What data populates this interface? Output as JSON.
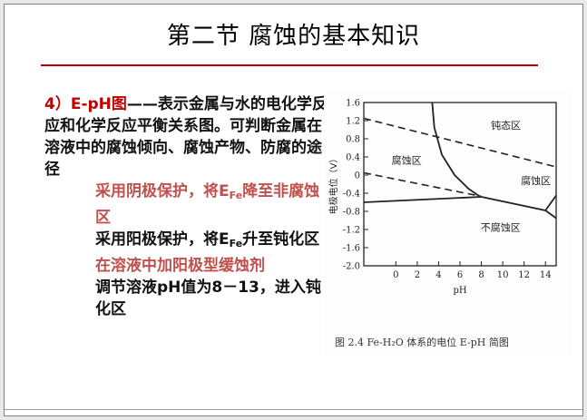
{
  "slide": {
    "title": "第二节  腐蚀的基本知识",
    "heading": "4）E-pH图",
    "dash": "——",
    "intro": "表示金属与水的电化学反应和化学反应平衡关系图。可判断金属在溶液中的腐蚀倾向、腐蚀产物、防腐的途径",
    "item1_pre": "采用阴极保护，将E",
    "item1_sub": "Fe",
    "item1_post": "降至非腐蚀区",
    "item2_pre": "采用阳极保护，将E",
    "item2_sub": "Fe",
    "item2_post": "升至钝化区",
    "item3": "在溶液中加阳极型缓蚀剂",
    "item4": "调节溶液pH值为8－13，进入钝化区",
    "caption": "图 2.4   Fe-H₂O 体系的电位 E-pH 简图"
  },
  "chart_data": {
    "type": "line",
    "title": "",
    "xlabel": "pH",
    "ylabel": "电极电位（V）",
    "xlim": [
      -3,
      15
    ],
    "ylim": [
      -2.0,
      1.6
    ],
    "xticks": [
      "0",
      "2",
      "4",
      "6",
      "8",
      "10",
      "12",
      "14"
    ],
    "yticks": [
      "1.6",
      "1.2",
      "0.8",
      "0.4",
      "0",
      "-0.4",
      "-0.8",
      "-1.2",
      "-1.6",
      "-2.0"
    ],
    "series": [
      {
        "style": "solid",
        "x": [
          -3,
          8
        ],
        "y": [
          -0.6,
          -0.48
        ]
      },
      {
        "style": "solid",
        "x": [
          3.4,
          3.6,
          4.3,
          5.5,
          6.8,
          7.9
        ],
        "y": [
          1.6,
          1.05,
          0.45,
          0.0,
          -0.3,
          -0.48
        ]
      },
      {
        "style": "solid",
        "x": [
          8,
          14,
          15
        ],
        "y": [
          -0.48,
          -0.78,
          -0.95
        ]
      },
      {
        "style": "solid",
        "x": [
          14,
          15
        ],
        "y": [
          -0.78,
          -0.45
        ]
      },
      {
        "style": "dashed",
        "x": [
          -3,
          15
        ],
        "y": [
          1.25,
          0.18
        ]
      },
      {
        "style": "dashed",
        "x": [
          -3,
          8
        ],
        "y": [
          0.05,
          -0.47
        ]
      }
    ],
    "regions": [
      {
        "label": "钝态区",
        "x": 10.3,
        "y": 1.1
      },
      {
        "label": "腐蚀区",
        "x": 1.0,
        "y": 0.33
      },
      {
        "label": "腐蚀区",
        "x": 13.1,
        "y": -0.12
      },
      {
        "label": "不腐蚀区",
        "x": 9.8,
        "y": -1.15
      }
    ]
  }
}
